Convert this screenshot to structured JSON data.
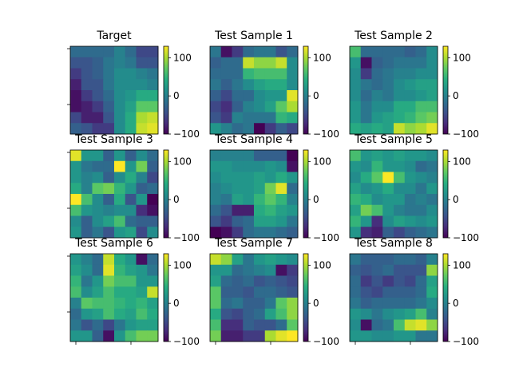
{
  "chart_data": {
    "type": "heatmap",
    "layout": "3x3 grid of heatmaps with colorbars",
    "grid": {
      "rows": 8,
      "cols": 8
    },
    "colormap": "viridis",
    "value_range": [
      -100,
      130
    ],
    "colorbar_ticks": [
      -100,
      0,
      100
    ],
    "colorbar_tick_labels": [
      "−100",
      "0",
      "100"
    ],
    "panels": [
      {
        "title": "Target",
        "values": [
          [
            -20,
            -20,
            -20,
            -20,
            0,
            -20,
            -50,
            -50
          ],
          [
            -40,
            -40,
            -30,
            -10,
            0,
            -10,
            -40,
            -40
          ],
          [
            -60,
            -40,
            -30,
            -10,
            10,
            10,
            0,
            -10
          ],
          [
            -80,
            -40,
            -40,
            -10,
            10,
            10,
            10,
            0
          ],
          [
            -90,
            -60,
            -40,
            -20,
            10,
            20,
            40,
            40
          ],
          [
            -90,
            -80,
            -60,
            -30,
            10,
            30,
            70,
            70
          ],
          [
            -50,
            -80,
            -80,
            -40,
            10,
            40,
            100,
            110
          ],
          [
            -30,
            -40,
            -60,
            -60,
            10,
            40,
            110,
            120
          ]
        ]
      },
      {
        "title": "Test Sample 1",
        "values": [
          [
            -10,
            -90,
            -60,
            -20,
            -10,
            -10,
            -40,
            -20
          ],
          [
            -30,
            -20,
            -20,
            110,
            90,
            90,
            110,
            10
          ],
          [
            -20,
            -20,
            -20,
            50,
            60,
            60,
            60,
            10
          ],
          [
            -10,
            -30,
            -10,
            10,
            30,
            40,
            40,
            10
          ],
          [
            -30,
            -50,
            -20,
            -20,
            10,
            20,
            20,
            120
          ],
          [
            -50,
            -70,
            -30,
            0,
            10,
            30,
            70,
            100
          ],
          [
            -40,
            -60,
            0,
            -10,
            -10,
            -10,
            50,
            40
          ],
          [
            20,
            0,
            -20,
            -10,
            -100,
            -60,
            -30,
            -50
          ]
        ]
      },
      {
        "title": "Test Sample 2",
        "values": [
          [
            60,
            -20,
            -20,
            -20,
            -20,
            -30,
            -20,
            10
          ],
          [
            20,
            -90,
            -30,
            -20,
            -10,
            -10,
            -10,
            10
          ],
          [
            10,
            -60,
            -20,
            -10,
            0,
            0,
            10,
            10
          ],
          [
            10,
            -10,
            -20,
            -10,
            10,
            20,
            30,
            30
          ],
          [
            10,
            -20,
            0,
            -10,
            10,
            10,
            20,
            30
          ],
          [
            20,
            -10,
            10,
            10,
            40,
            40,
            60,
            60
          ],
          [
            20,
            -10,
            20,
            30,
            40,
            50,
            70,
            80
          ],
          [
            40,
            30,
            40,
            30,
            110,
            90,
            100,
            120
          ]
        ]
      },
      {
        "title": "Test Sample 3",
        "values": [
          [
            120,
            20,
            20,
            -30,
            20,
            -30,
            10,
            -20
          ],
          [
            20,
            -10,
            -20,
            -20,
            130,
            20,
            80,
            -30
          ],
          [
            20,
            0,
            10,
            -30,
            10,
            40,
            0,
            -50
          ],
          [
            40,
            0,
            70,
            80,
            50,
            20,
            -30,
            -20
          ],
          [
            130,
            60,
            10,
            -30,
            40,
            -40,
            20,
            -100
          ],
          [
            60,
            20,
            10,
            0,
            10,
            10,
            -70,
            -90
          ],
          [
            10,
            -30,
            10,
            30,
            60,
            -20,
            -30,
            -30
          ],
          [
            20,
            -30,
            -10,
            -40,
            20,
            30,
            -50,
            10
          ]
        ]
      },
      {
        "title": "Test Sample 4",
        "values": [
          [
            0,
            0,
            0,
            0,
            -30,
            -30,
            -30,
            -100
          ],
          [
            20,
            20,
            10,
            10,
            10,
            20,
            10,
            -90
          ],
          [
            10,
            20,
            20,
            20,
            30,
            20,
            40,
            20
          ],
          [
            0,
            10,
            20,
            20,
            30,
            80,
            120,
            -20
          ],
          [
            0,
            -10,
            30,
            20,
            50,
            70,
            50,
            0
          ],
          [
            -20,
            -40,
            -80,
            -80,
            40,
            50,
            30,
            20
          ],
          [
            -40,
            -60,
            -30,
            -20,
            30,
            30,
            20,
            -10
          ],
          [
            -100,
            -90,
            -60,
            -20,
            -10,
            -10,
            -20,
            -30
          ]
        ]
      },
      {
        "title": "Test Sample 5",
        "values": [
          [
            60,
            20,
            30,
            20,
            30,
            20,
            20,
            10
          ],
          [
            20,
            10,
            50,
            20,
            20,
            10,
            -20,
            -10
          ],
          [
            10,
            40,
            70,
            130,
            60,
            20,
            10,
            0
          ],
          [
            30,
            10,
            20,
            40,
            10,
            10,
            -10,
            20
          ],
          [
            50,
            40,
            10,
            20,
            20,
            -10,
            0,
            -10
          ],
          [
            30,
            80,
            60,
            20,
            0,
            -10,
            -10,
            10
          ],
          [
            50,
            20,
            -70,
            10,
            30,
            20,
            10,
            20
          ],
          [
            20,
            -70,
            -80,
            -30,
            -50,
            -30,
            -20,
            -10
          ]
        ]
      },
      {
        "title": "Test Sample 6",
        "values": [
          [
            20,
            0,
            -20,
            110,
            40,
            20,
            -90,
            -20
          ],
          [
            30,
            10,
            -20,
            120,
            50,
            30,
            20,
            -10
          ],
          [
            50,
            -10,
            20,
            80,
            60,
            60,
            20,
            20
          ],
          [
            60,
            10,
            30,
            60,
            40,
            40,
            30,
            110
          ],
          [
            0,
            70,
            60,
            60,
            50,
            40,
            50,
            30
          ],
          [
            -20,
            20,
            30,
            60,
            40,
            30,
            60,
            40
          ],
          [
            -10,
            -40,
            -20,
            -50,
            -10,
            20,
            30,
            30
          ],
          [
            20,
            20,
            -30,
            -90,
            20,
            60,
            80,
            80
          ]
        ]
      },
      {
        "title": "Test Sample 7",
        "values": [
          [
            110,
            90,
            30,
            -10,
            20,
            30,
            20,
            10
          ],
          [
            20,
            20,
            -20,
            -10,
            0,
            10,
            -90,
            -60
          ],
          [
            30,
            -20,
            -30,
            -20,
            -40,
            -30,
            -40,
            -50
          ],
          [
            70,
            -30,
            -30,
            -40,
            -20,
            -20,
            -30,
            -40
          ],
          [
            70,
            -20,
            -10,
            -30,
            -30,
            -10,
            70,
            90
          ],
          [
            40,
            -40,
            -50,
            -30,
            -20,
            30,
            60,
            90
          ],
          [
            60,
            -70,
            -70,
            -30,
            -40,
            -40,
            -20,
            70
          ],
          [
            80,
            -80,
            -80,
            -60,
            -60,
            100,
            120,
            130
          ]
        ]
      },
      {
        "title": "Test Sample 8",
        "values": [
          [
            -10,
            -30,
            -30,
            -30,
            -20,
            -20,
            -30,
            0
          ],
          [
            -30,
            -40,
            -30,
            -20,
            -40,
            -40,
            -40,
            90
          ],
          [
            -20,
            -60,
            -40,
            -60,
            -40,
            -50,
            -20,
            30
          ],
          [
            -20,
            -40,
            -50,
            -30,
            -30,
            -30,
            -20,
            40
          ],
          [
            -10,
            -30,
            -20,
            -20,
            -20,
            -20,
            -10,
            10
          ],
          [
            20,
            10,
            -10,
            10,
            20,
            30,
            60,
            0
          ],
          [
            10,
            -90,
            -20,
            -10,
            60,
            110,
            120,
            90
          ],
          [
            20,
            20,
            10,
            10,
            20,
            20,
            -10,
            -10
          ]
        ]
      }
    ]
  }
}
